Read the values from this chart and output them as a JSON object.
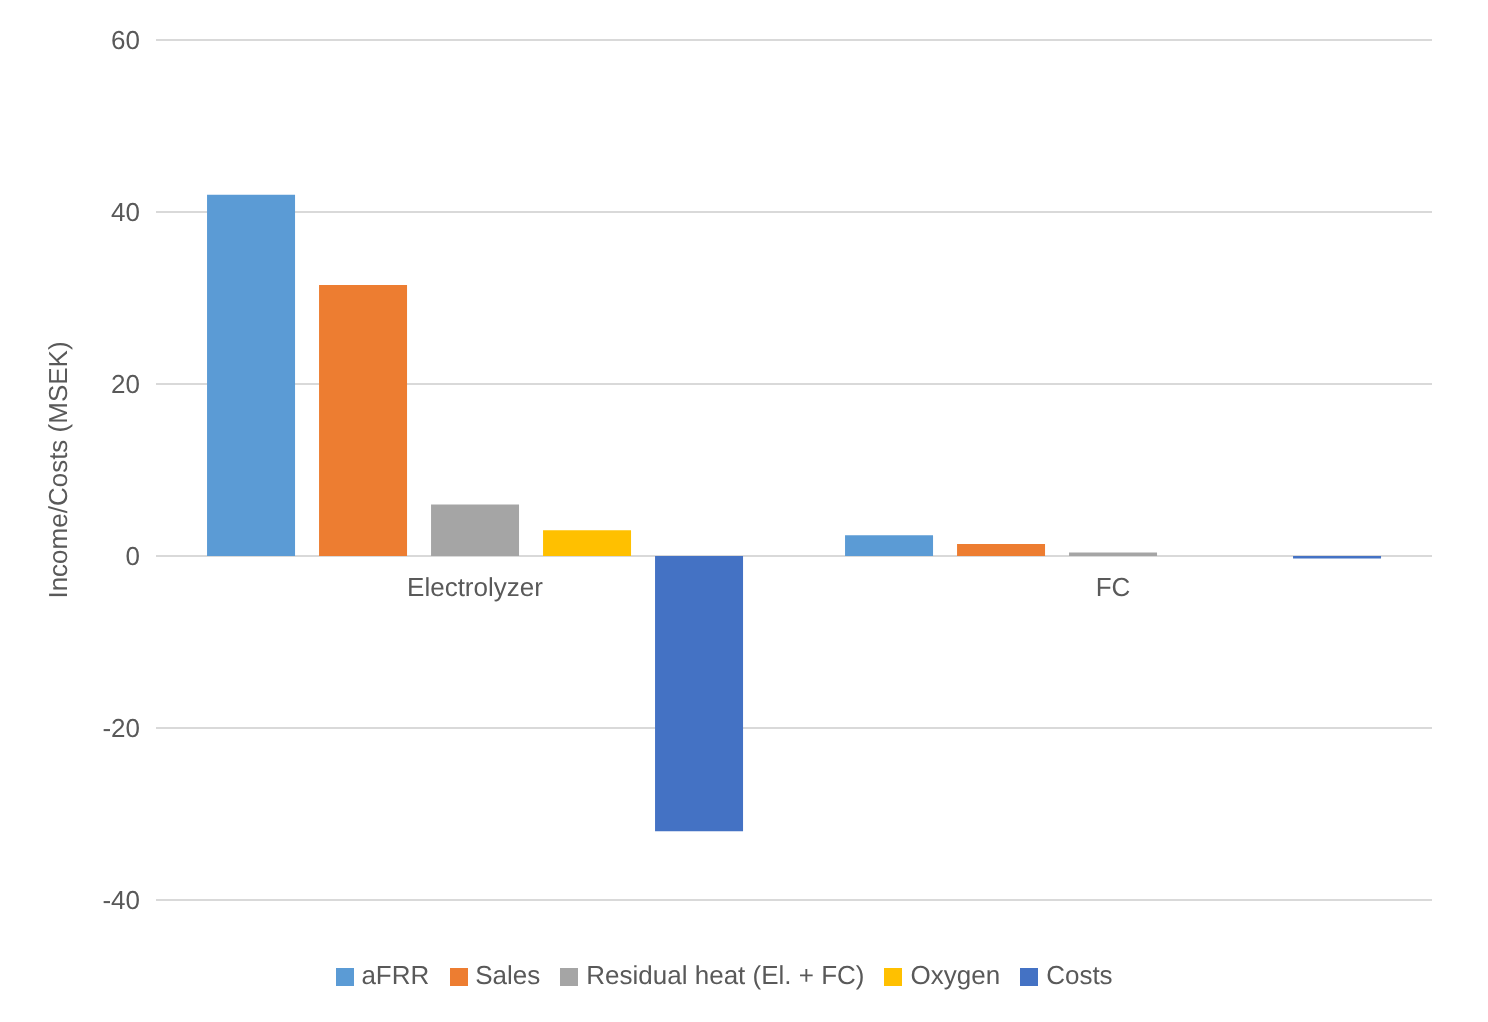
{
  "chart_data": {
    "type": "bar",
    "ylabel": "Income/Costs (MSEK)",
    "categories": [
      "Electrolyzer",
      "FC"
    ],
    "series": [
      {
        "name": "aFRR",
        "color": "#5b9bd5",
        "values": [
          42,
          2.4
        ]
      },
      {
        "name": "Sales",
        "color": "#ed7d31",
        "values": [
          31.5,
          1.4
        ]
      },
      {
        "name": "Residual heat (El. + FC)",
        "color": "#a5a5a5",
        "values": [
          6,
          0.4
        ]
      },
      {
        "name": "Oxygen",
        "color": "#ffc000",
        "values": [
          3,
          0
        ]
      },
      {
        "name": "Costs",
        "color": "#4472c4",
        "values": [
          -32,
          -0.3
        ]
      }
    ],
    "ylim": [
      -40,
      60
    ],
    "yticks": [
      -40,
      -20,
      0,
      20,
      40,
      60
    ],
    "grid": "y",
    "legend": "bottom"
  }
}
